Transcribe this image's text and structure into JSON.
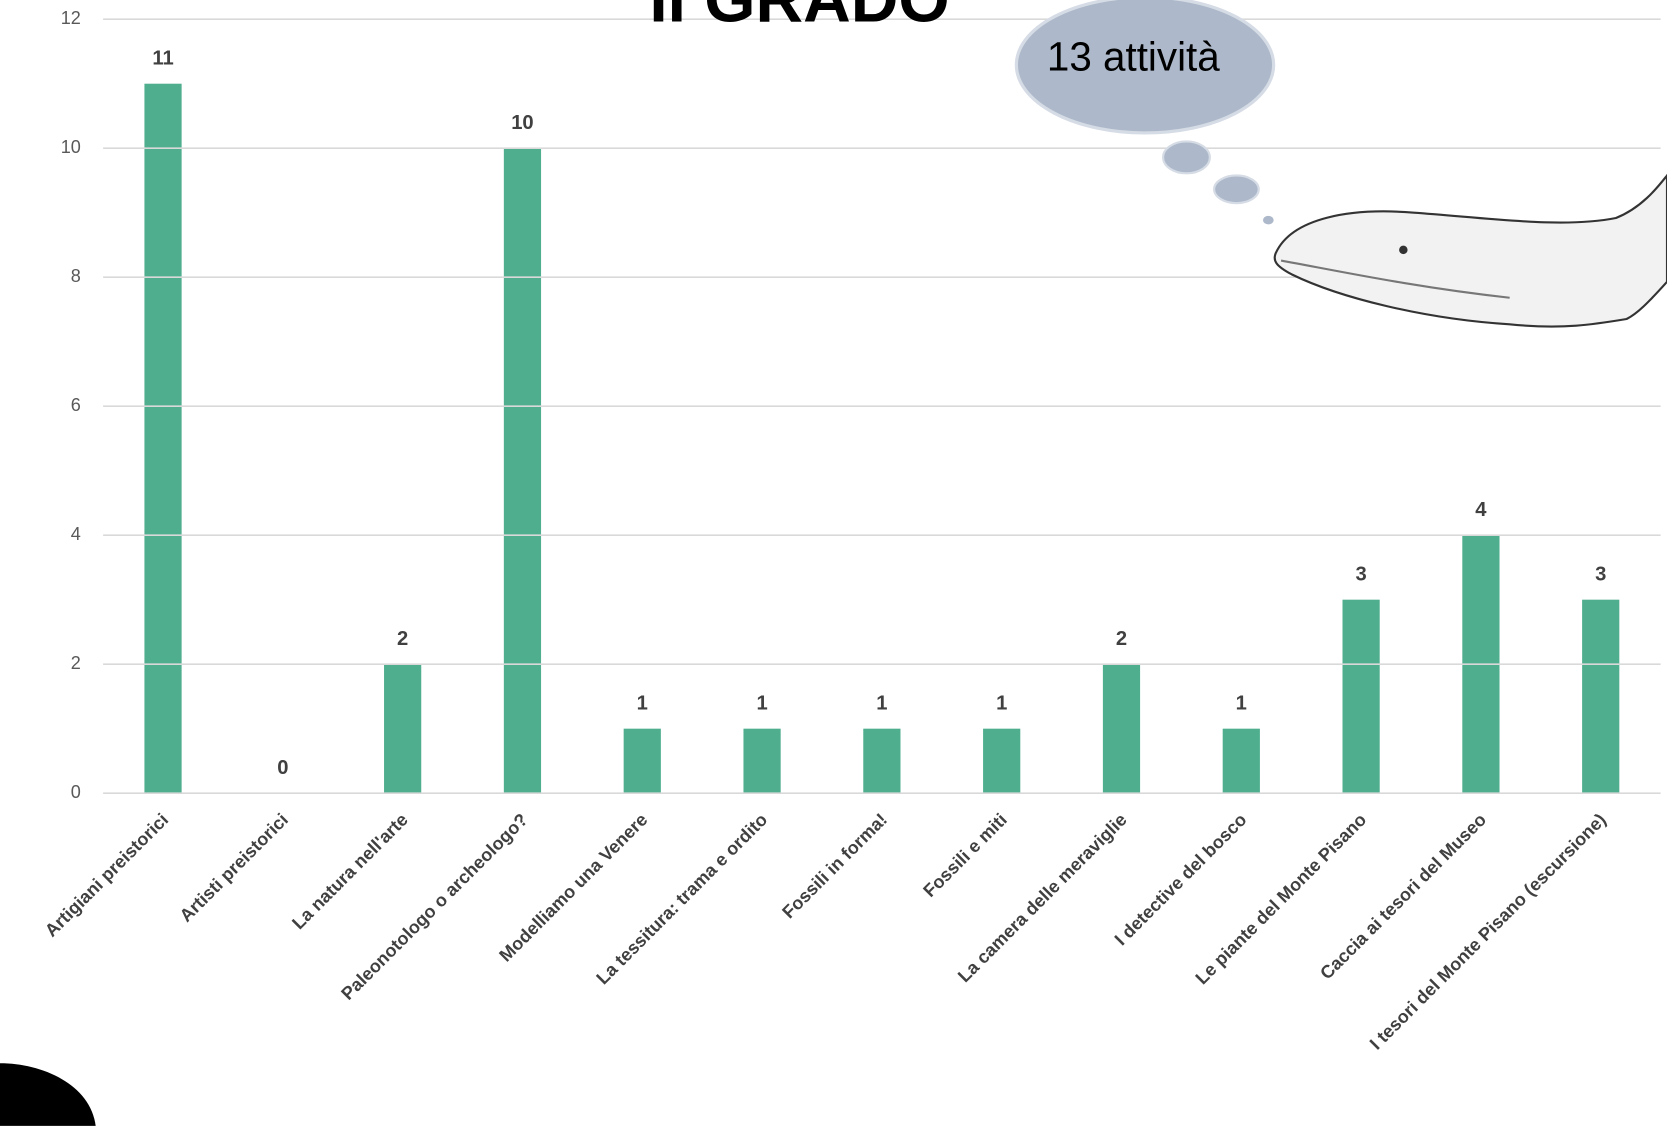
{
  "chart_data": {
    "type": "bar",
    "title": "II GRADO",
    "annotation": "13 attività",
    "categories": [
      "Artigiani preistorici",
      "Artisti preistorici",
      "La natura nell'arte",
      "Paleonotologo o archeologo?",
      "Modelliamo una Venere",
      "La tessitura: trama e ordito",
      "Fossili in forma!",
      "Fossili e miti",
      "La camera delle meraviglie",
      "I detective del bosco",
      "Le piante del Monte Pisano",
      "Caccia ai tesori del Museo",
      "I tesori del Monte Pisano (escursione)"
    ],
    "values": [
      11,
      0,
      2,
      10,
      1,
      1,
      1,
      1,
      2,
      1,
      3,
      4,
      3
    ],
    "color": "#4fae8e",
    "ylim": [
      0,
      12
    ],
    "yticks": [
      0,
      2,
      4,
      6,
      8,
      10,
      12
    ],
    "grid": true
  }
}
